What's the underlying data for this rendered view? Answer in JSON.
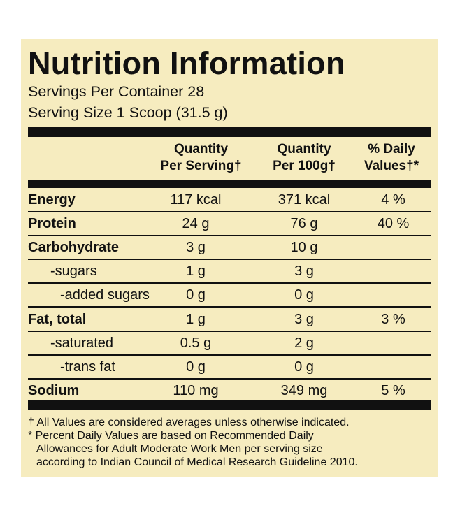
{
  "title": "Nutrition Information",
  "servings_per_container": "Servings Per Container 28",
  "serving_size": "Serving Size 1 Scoop (31.5 g)",
  "columns": {
    "per_serving": [
      "Quantity",
      "Per Serving†"
    ],
    "per_100g": [
      "Quantity",
      "Per 100g†"
    ],
    "daily_values": [
      "% Daily",
      "Values†*"
    ]
  },
  "rows": [
    {
      "label": "Energy",
      "per_serving": "117 kcal",
      "per_100g": "371 kcal",
      "daily": "4 %"
    },
    {
      "label": "Protein",
      "per_serving": "24 g",
      "per_100g": "76 g",
      "daily": "40 %"
    },
    {
      "label": "Carbohydrate",
      "per_serving": "3 g",
      "per_100g": "10 g",
      "daily": ""
    },
    {
      "label": "-sugars",
      "per_serving": "1 g",
      "per_100g": "3 g",
      "daily": ""
    },
    {
      "label": "-added sugars",
      "per_serving": "0 g",
      "per_100g": "0 g",
      "daily": ""
    },
    {
      "label": "Fat, total",
      "per_serving": "1 g",
      "per_100g": "3 g",
      "daily": "3 %"
    },
    {
      "label": "-saturated",
      "per_serving": "0.5 g",
      "per_100g": "2 g",
      "daily": ""
    },
    {
      "label": "-trans fat",
      "per_serving": "0 g",
      "per_100g": "0 g",
      "daily": ""
    },
    {
      "label": "Sodium",
      "per_serving": "110 mg",
      "per_100g": "349 mg",
      "daily": "5 %"
    }
  ],
  "footnotes": [
    "† All Values are considered averages unless otherwise indicated.",
    "* Percent Daily Values are based on Recommended Daily",
    "Allowances for Adult Moderate Work Men per serving size",
    "according to Indian Council of Medical Research Guideline 2010."
  ],
  "colors": {
    "panel_background": "#f6ecbf",
    "ink": "#111111"
  }
}
